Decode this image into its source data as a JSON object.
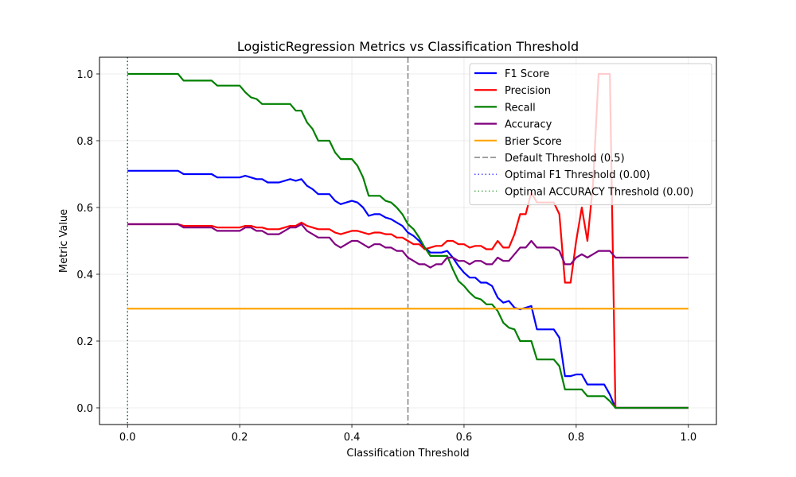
{
  "chart_data": {
    "type": "line",
    "title": "LogisticRegression Metrics vs Classification Threshold",
    "xlabel": "Classification Threshold",
    "ylabel": "Metric Value",
    "xlim": [
      -0.05,
      1.05
    ],
    "ylim": [
      -0.05,
      1.05
    ],
    "xticks": [
      0.0,
      0.2,
      0.4,
      0.6,
      0.8,
      1.0
    ],
    "xtick_labels": [
      "0.0",
      "0.2",
      "0.4",
      "0.6",
      "0.8",
      "1.0"
    ],
    "yticks": [
      0.0,
      0.2,
      0.4,
      0.6,
      0.8,
      1.0
    ],
    "ytick_labels": [
      "0.0",
      "0.2",
      "0.4",
      "0.6",
      "0.8",
      "1.0"
    ],
    "grid": true,
    "legend_position": "upper right",
    "series": [
      {
        "name": "F1 Score",
        "color": "#0000ff",
        "style": "solid",
        "points": [
          [
            0.0,
            0.71
          ],
          [
            0.09,
            0.71
          ],
          [
            0.1,
            0.7
          ],
          [
            0.15,
            0.7
          ],
          [
            0.16,
            0.69
          ],
          [
            0.2,
            0.69
          ],
          [
            0.21,
            0.695
          ],
          [
            0.22,
            0.69
          ],
          [
            0.23,
            0.685
          ],
          [
            0.24,
            0.685
          ],
          [
            0.25,
            0.675
          ],
          [
            0.27,
            0.675
          ],
          [
            0.28,
            0.68
          ],
          [
            0.29,
            0.685
          ],
          [
            0.3,
            0.68
          ],
          [
            0.31,
            0.685
          ],
          [
            0.32,
            0.665
          ],
          [
            0.33,
            0.655
          ],
          [
            0.34,
            0.64
          ],
          [
            0.36,
            0.64
          ],
          [
            0.37,
            0.62
          ],
          [
            0.38,
            0.61
          ],
          [
            0.39,
            0.615
          ],
          [
            0.4,
            0.62
          ],
          [
            0.41,
            0.615
          ],
          [
            0.42,
            0.6
          ],
          [
            0.43,
            0.575
          ],
          [
            0.44,
            0.58
          ],
          [
            0.45,
            0.58
          ],
          [
            0.46,
            0.57
          ],
          [
            0.47,
            0.565
          ],
          [
            0.48,
            0.555
          ],
          [
            0.49,
            0.545
          ],
          [
            0.5,
            0.525
          ],
          [
            0.51,
            0.515
          ],
          [
            0.52,
            0.5
          ],
          [
            0.53,
            0.48
          ],
          [
            0.54,
            0.465
          ],
          [
            0.55,
            0.465
          ],
          [
            0.56,
            0.465
          ],
          [
            0.57,
            0.47
          ],
          [
            0.58,
            0.45
          ],
          [
            0.59,
            0.425
          ],
          [
            0.6,
            0.405
          ],
          [
            0.61,
            0.39
          ],
          [
            0.62,
            0.39
          ],
          [
            0.63,
            0.375
          ],
          [
            0.64,
            0.375
          ],
          [
            0.65,
            0.365
          ],
          [
            0.66,
            0.33
          ],
          [
            0.67,
            0.315
          ],
          [
            0.68,
            0.32
          ],
          [
            0.69,
            0.3
          ],
          [
            0.7,
            0.295
          ],
          [
            0.71,
            0.3
          ],
          [
            0.72,
            0.305
          ],
          [
            0.73,
            0.235
          ],
          [
            0.76,
            0.235
          ],
          [
            0.77,
            0.21
          ],
          [
            0.78,
            0.095
          ],
          [
            0.79,
            0.095
          ],
          [
            0.8,
            0.1
          ],
          [
            0.81,
            0.1
          ],
          [
            0.82,
            0.07
          ],
          [
            0.85,
            0.07
          ],
          [
            0.86,
            0.04
          ],
          [
            0.87,
            0.0
          ],
          [
            1.0,
            0.0
          ]
        ]
      },
      {
        "name": "Precision",
        "color": "#ff0000",
        "style": "solid",
        "points": [
          [
            0.0,
            0.55
          ],
          [
            0.09,
            0.55
          ],
          [
            0.1,
            0.545
          ],
          [
            0.15,
            0.545
          ],
          [
            0.16,
            0.54
          ],
          [
            0.2,
            0.54
          ],
          [
            0.21,
            0.545
          ],
          [
            0.22,
            0.545
          ],
          [
            0.23,
            0.54
          ],
          [
            0.24,
            0.54
          ],
          [
            0.25,
            0.535
          ],
          [
            0.27,
            0.535
          ],
          [
            0.28,
            0.54
          ],
          [
            0.29,
            0.545
          ],
          [
            0.3,
            0.545
          ],
          [
            0.31,
            0.555
          ],
          [
            0.32,
            0.545
          ],
          [
            0.33,
            0.54
          ],
          [
            0.34,
            0.535
          ],
          [
            0.36,
            0.535
          ],
          [
            0.37,
            0.525
          ],
          [
            0.38,
            0.52
          ],
          [
            0.39,
            0.525
          ],
          [
            0.4,
            0.53
          ],
          [
            0.41,
            0.53
          ],
          [
            0.42,
            0.525
          ],
          [
            0.43,
            0.52
          ],
          [
            0.44,
            0.525
          ],
          [
            0.45,
            0.525
          ],
          [
            0.46,
            0.52
          ],
          [
            0.47,
            0.52
          ],
          [
            0.48,
            0.51
          ],
          [
            0.49,
            0.51
          ],
          [
            0.5,
            0.5
          ],
          [
            0.51,
            0.49
          ],
          [
            0.52,
            0.49
          ],
          [
            0.53,
            0.475
          ],
          [
            0.54,
            0.48
          ],
          [
            0.55,
            0.485
          ],
          [
            0.56,
            0.485
          ],
          [
            0.57,
            0.5
          ],
          [
            0.58,
            0.5
          ],
          [
            0.59,
            0.49
          ],
          [
            0.6,
            0.49
          ],
          [
            0.61,
            0.48
          ],
          [
            0.62,
            0.485
          ],
          [
            0.63,
            0.485
          ],
          [
            0.64,
            0.475
          ],
          [
            0.65,
            0.475
          ],
          [
            0.66,
            0.5
          ],
          [
            0.67,
            0.48
          ],
          [
            0.68,
            0.48
          ],
          [
            0.69,
            0.52
          ],
          [
            0.7,
            0.58
          ],
          [
            0.71,
            0.58
          ],
          [
            0.72,
            0.645
          ],
          [
            0.73,
            0.615
          ],
          [
            0.76,
            0.615
          ],
          [
            0.77,
            0.58
          ],
          [
            0.78,
            0.375
          ],
          [
            0.79,
            0.375
          ],
          [
            0.8,
            0.5
          ],
          [
            0.81,
            0.6
          ],
          [
            0.82,
            0.5
          ],
          [
            0.83,
            0.67
          ],
          [
            0.84,
            1.0
          ],
          [
            0.86,
            1.0
          ],
          [
            0.87,
            0.0
          ],
          [
            1.0,
            0.0
          ]
        ]
      },
      {
        "name": "Recall",
        "color": "#008000",
        "style": "solid",
        "points": [
          [
            0.0,
            1.0
          ],
          [
            0.09,
            1.0
          ],
          [
            0.1,
            0.98
          ],
          [
            0.15,
            0.98
          ],
          [
            0.16,
            0.965
          ],
          [
            0.2,
            0.965
          ],
          [
            0.21,
            0.945
          ],
          [
            0.22,
            0.93
          ],
          [
            0.23,
            0.925
          ],
          [
            0.24,
            0.91
          ],
          [
            0.25,
            0.91
          ],
          [
            0.28,
            0.91
          ],
          [
            0.29,
            0.91
          ],
          [
            0.3,
            0.89
          ],
          [
            0.31,
            0.89
          ],
          [
            0.32,
            0.855
          ],
          [
            0.33,
            0.835
          ],
          [
            0.34,
            0.8
          ],
          [
            0.36,
            0.8
          ],
          [
            0.37,
            0.765
          ],
          [
            0.38,
            0.745
          ],
          [
            0.39,
            0.745
          ],
          [
            0.4,
            0.745
          ],
          [
            0.41,
            0.725
          ],
          [
            0.42,
            0.69
          ],
          [
            0.43,
            0.635
          ],
          [
            0.44,
            0.635
          ],
          [
            0.45,
            0.635
          ],
          [
            0.46,
            0.62
          ],
          [
            0.47,
            0.615
          ],
          [
            0.48,
            0.6
          ],
          [
            0.49,
            0.58
          ],
          [
            0.5,
            0.55
          ],
          [
            0.51,
            0.535
          ],
          [
            0.52,
            0.51
          ],
          [
            0.53,
            0.48
          ],
          [
            0.54,
            0.455
          ],
          [
            0.56,
            0.455
          ],
          [
            0.57,
            0.455
          ],
          [
            0.58,
            0.415
          ],
          [
            0.59,
            0.38
          ],
          [
            0.6,
            0.365
          ],
          [
            0.61,
            0.345
          ],
          [
            0.62,
            0.33
          ],
          [
            0.63,
            0.325
          ],
          [
            0.64,
            0.31
          ],
          [
            0.65,
            0.31
          ],
          [
            0.66,
            0.29
          ],
          [
            0.67,
            0.255
          ],
          [
            0.68,
            0.24
          ],
          [
            0.69,
            0.235
          ],
          [
            0.7,
            0.2
          ],
          [
            0.72,
            0.2
          ],
          [
            0.73,
            0.145
          ],
          [
            0.76,
            0.145
          ],
          [
            0.77,
            0.125
          ],
          [
            0.78,
            0.055
          ],
          [
            0.8,
            0.055
          ],
          [
            0.81,
            0.055
          ],
          [
            0.82,
            0.035
          ],
          [
            0.85,
            0.035
          ],
          [
            0.86,
            0.02
          ],
          [
            0.87,
            0.0
          ],
          [
            1.0,
            0.0
          ]
        ]
      },
      {
        "name": "Accuracy",
        "color": "#800080",
        "style": "solid",
        "points": [
          [
            0.0,
            0.55
          ],
          [
            0.09,
            0.55
          ],
          [
            0.1,
            0.54
          ],
          [
            0.15,
            0.54
          ],
          [
            0.16,
            0.53
          ],
          [
            0.2,
            0.53
          ],
          [
            0.21,
            0.54
          ],
          [
            0.22,
            0.54
          ],
          [
            0.23,
            0.53
          ],
          [
            0.24,
            0.53
          ],
          [
            0.25,
            0.52
          ],
          [
            0.27,
            0.52
          ],
          [
            0.28,
            0.53
          ],
          [
            0.29,
            0.54
          ],
          [
            0.3,
            0.54
          ],
          [
            0.31,
            0.55
          ],
          [
            0.32,
            0.53
          ],
          [
            0.33,
            0.52
          ],
          [
            0.34,
            0.51
          ],
          [
            0.36,
            0.51
          ],
          [
            0.37,
            0.49
          ],
          [
            0.38,
            0.48
          ],
          [
            0.39,
            0.49
          ],
          [
            0.4,
            0.5
          ],
          [
            0.41,
            0.5
          ],
          [
            0.42,
            0.49
          ],
          [
            0.43,
            0.48
          ],
          [
            0.44,
            0.49
          ],
          [
            0.45,
            0.49
          ],
          [
            0.46,
            0.48
          ],
          [
            0.47,
            0.48
          ],
          [
            0.48,
            0.47
          ],
          [
            0.49,
            0.47
          ],
          [
            0.5,
            0.45
          ],
          [
            0.51,
            0.44
          ],
          [
            0.52,
            0.43
          ],
          [
            0.53,
            0.43
          ],
          [
            0.54,
            0.42
          ],
          [
            0.55,
            0.43
          ],
          [
            0.56,
            0.43
          ],
          [
            0.57,
            0.45
          ],
          [
            0.58,
            0.45
          ],
          [
            0.59,
            0.44
          ],
          [
            0.6,
            0.44
          ],
          [
            0.61,
            0.43
          ],
          [
            0.62,
            0.44
          ],
          [
            0.63,
            0.44
          ],
          [
            0.64,
            0.43
          ],
          [
            0.65,
            0.43
          ],
          [
            0.66,
            0.45
          ],
          [
            0.67,
            0.44
          ],
          [
            0.68,
            0.44
          ],
          [
            0.69,
            0.46
          ],
          [
            0.7,
            0.48
          ],
          [
            0.71,
            0.48
          ],
          [
            0.72,
            0.5
          ],
          [
            0.73,
            0.48
          ],
          [
            0.76,
            0.48
          ],
          [
            0.77,
            0.47
          ],
          [
            0.78,
            0.43
          ],
          [
            0.79,
            0.43
          ],
          [
            0.8,
            0.45
          ],
          [
            0.81,
            0.46
          ],
          [
            0.82,
            0.45
          ],
          [
            0.83,
            0.46
          ],
          [
            0.84,
            0.47
          ],
          [
            0.86,
            0.47
          ],
          [
            0.87,
            0.45
          ],
          [
            1.0,
            0.45
          ]
        ]
      },
      {
        "name": "Brier Score",
        "color": "#ffa500",
        "style": "solid",
        "points": [
          [
            0.0,
            0.297
          ],
          [
            1.0,
            0.297
          ]
        ]
      }
    ],
    "reference_lines": [
      {
        "name": "Default Threshold (0.5)",
        "x": 0.5,
        "color": "#808080",
        "style": "dashed"
      },
      {
        "name": "Optimal F1 Threshold (0.00)",
        "x": 0.0,
        "color": "#0000ff",
        "style": "dotted"
      },
      {
        "name": "Optimal ACCURACY Threshold (0.00)",
        "x": 0.0,
        "color": "#008000",
        "style": "dotted"
      }
    ]
  }
}
